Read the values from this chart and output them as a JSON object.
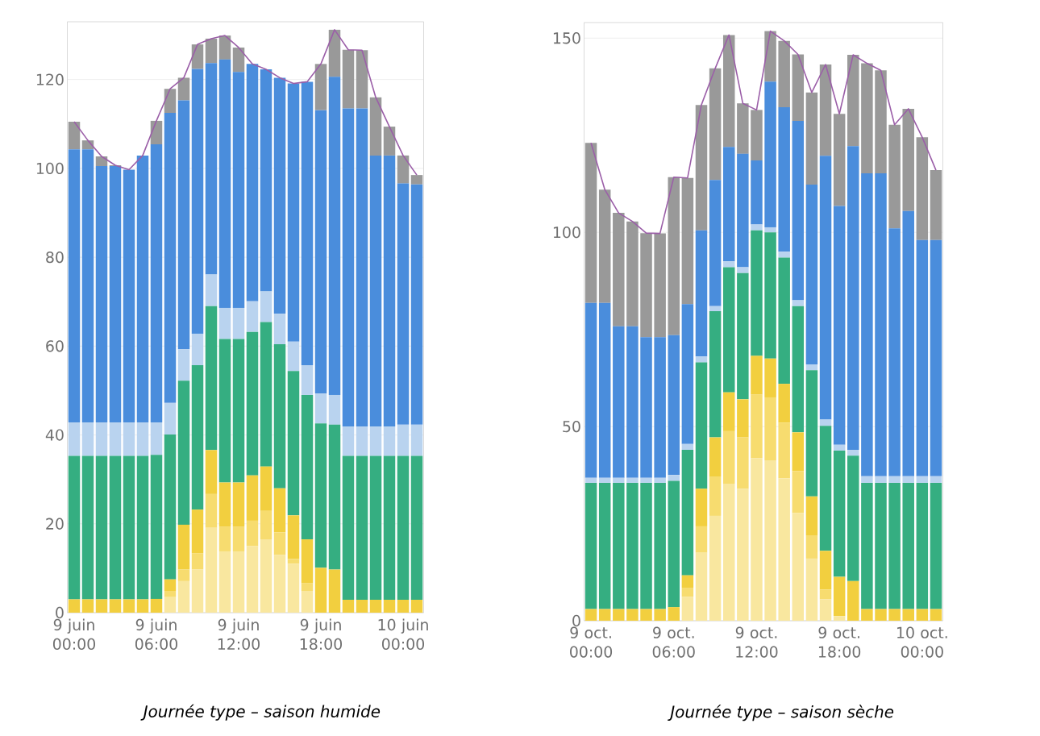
{
  "chart_data": [
    {
      "type": "bar",
      "title": "*Journée type – saison humide*",
      "stacked": true,
      "grid": "y",
      "ylim": [
        0,
        133
      ],
      "yticks": [
        0,
        20,
        40,
        60,
        80,
        100,
        120
      ],
      "categories": [
        "9 juin 00:00",
        null,
        null,
        null,
        null,
        null,
        "9 juin 06:00",
        null,
        null,
        null,
        null,
        null,
        "9 juin 12:00",
        null,
        null,
        null,
        null,
        null,
        "9 juin 18:00",
        null,
        null,
        null,
        null,
        null,
        "10 juin 00:00",
        null
      ],
      "series": [
        {
          "color": "#f9e79f",
          "values": [
            0,
            0,
            0,
            0,
            0,
            0,
            0,
            3.5,
            7.1,
            9.7,
            19.1,
            13.8,
            13.8,
            15.0,
            16.5,
            13.0,
            11.0,
            4.9,
            0,
            0,
            0,
            0,
            0,
            0,
            0,
            0
          ]
        },
        {
          "color": "#f7dc6f",
          "values": [
            0,
            0,
            0,
            0,
            0,
            0,
            0,
            1.4,
            2.6,
            3.7,
            7.6,
            5.6,
            5.6,
            5.7,
            6.4,
            5.1,
            1.1,
            1.7,
            0,
            0,
            0,
            0,
            0,
            0,
            0,
            0
          ]
        },
        {
          "color": "#f2cf3f",
          "values": [
            3,
            3,
            3,
            3,
            3,
            3,
            3.1,
            2.6,
            10.1,
            9.8,
            9.9,
            9.9,
            9.9,
            10.2,
            10.0,
            9.9,
            9.8,
            9.9,
            10.1,
            9.7,
            2.9,
            2.9,
            2.9,
            2.9,
            2.9,
            2.9
          ]
        },
        {
          "color": "#35ae81",
          "values": [
            32.3,
            32.3,
            32.3,
            32.3,
            32.3,
            32.3,
            32.4,
            32.6,
            32.4,
            32.5,
            32.4,
            32.3,
            32.3,
            32.3,
            32.5,
            32.4,
            32.5,
            32.5,
            32.5,
            32.6,
            32.4,
            32.4,
            32.4,
            32.4,
            32.4,
            32.4
          ]
        },
        {
          "color": "#b9d3ef",
          "values": [
            7.5,
            7.5,
            7.5,
            7.5,
            7.5,
            7.5,
            7.3,
            7.1,
            7.1,
            7.1,
            7.1,
            7.0,
            7.0,
            6.9,
            6.9,
            6.9,
            6.6,
            6.7,
            6.7,
            6.7,
            6.6,
            6.6,
            6.6,
            6.6,
            7.0,
            7.0
          ]
        },
        {
          "color": "#4a8ddc",
          "values": [
            61.5,
            61.5,
            57.7,
            57.7,
            56.9,
            60.1,
            62.6,
            65.3,
            56.0,
            59.6,
            47.6,
            55.9,
            53.1,
            53.4,
            50.0,
            53.1,
            58.1,
            63.8,
            63.8,
            71.6,
            71.6,
            71.6,
            61.0,
            61.0,
            54.3,
            54.1
          ]
        },
        {
          "color": "#999999",
          "values": [
            6.2,
            2.0,
            2.2,
            0.2,
            0,
            0,
            5.3,
            5.4,
            5.1,
            5.5,
            5.5,
            5.4,
            5.5,
            0,
            0,
            0,
            0,
            0,
            10.4,
            10.6,
            13.2,
            13.1,
            13.1,
            6.5,
            6.3,
            2.1
          ]
        },
        {
          "type": "line",
          "color": "#9b5fa8",
          "values": [
            110.5,
            106.3,
            102.7,
            100.7,
            99.7,
            102.9,
            110.7,
            117.9,
            120.4,
            127.9,
            129.2,
            129.9,
            127.2,
            123.5,
            122.3,
            120.4,
            119.1,
            119.5,
            123.5,
            131.2,
            126.7,
            126.6,
            116.0,
            109.4,
            102.9,
            98.5
          ]
        }
      ]
    },
    {
      "type": "bar",
      "title": "*Journée type – saison sèche*",
      "stacked": true,
      "grid": "y",
      "ylim": [
        0,
        154
      ],
      "yticks": [
        0,
        50,
        100,
        150
      ],
      "categories": [
        "9 oct. 00:00",
        null,
        null,
        null,
        null,
        null,
        "9 oct. 06:00",
        null,
        null,
        null,
        null,
        null,
        "9 oct. 12:00",
        null,
        null,
        null,
        null,
        null,
        "9 oct. 18:00",
        null,
        null,
        null,
        null,
        null,
        "10 oct. 00:00",
        null
      ],
      "series": [
        {
          "color": "#f9e79f",
          "values": [
            0,
            0,
            0,
            0,
            0,
            0,
            0,
            6.2,
            17.5,
            27.0,
            35.3,
            34.0,
            41.8,
            41.3,
            36.7,
            27.7,
            16.0,
            5.5,
            1.2,
            0,
            0,
            0,
            0,
            0,
            0,
            0
          ]
        },
        {
          "color": "#f7dc6f",
          "values": [
            0,
            0,
            0,
            0,
            0,
            0,
            0,
            2.3,
            6.8,
            10.0,
            13.5,
            13.2,
            16.4,
            16.2,
            14.3,
            10.8,
            6.0,
            2.5,
            0,
            0,
            0,
            0,
            0,
            0,
            0,
            0
          ]
        },
        {
          "color": "#f2cf3f",
          "values": [
            3.0,
            3.0,
            3.0,
            3.0,
            3.0,
            3.0,
            3.5,
            3.2,
            9.7,
            10.2,
            10.0,
            9.8,
            10.0,
            10.0,
            10.0,
            10.0,
            10.0,
            10.0,
            10.1,
            10.2,
            3.0,
            3.0,
            3.0,
            3.0,
            3.0,
            3.0
          ]
        },
        {
          "color": "#35ae81",
          "values": [
            32.5,
            32.5,
            32.5,
            32.5,
            32.5,
            32.5,
            32.5,
            32.3,
            32.5,
            32.5,
            32.2,
            32.5,
            32.3,
            32.5,
            32.5,
            32.5,
            32.5,
            32.2,
            32.5,
            32.3,
            32.5,
            32.5,
            32.5,
            32.5,
            32.5,
            32.5
          ]
        },
        {
          "color": "#b9d3ef",
          "values": [
            1.3,
            1.3,
            1.3,
            1.3,
            1.3,
            1.3,
            1.5,
            1.5,
            1.5,
            1.3,
            1.5,
            1.5,
            1.5,
            1.3,
            1.5,
            1.5,
            1.5,
            1.6,
            1.5,
            1.5,
            1.7,
            1.7,
            1.7,
            1.7,
            1.7,
            1.7
          ]
        },
        {
          "color": "#4a8ddc",
          "values": [
            45.0,
            45.0,
            39.0,
            39.0,
            36.2,
            36.2,
            36.0,
            36.0,
            32.5,
            32.5,
            29.5,
            29.2,
            16.5,
            37.5,
            37.2,
            46.2,
            46.3,
            67.9,
            61.5,
            78.2,
            78.0,
            78.0,
            63.8,
            68.3,
            60.8,
            60.8
          ]
        },
        {
          "color": "#999999",
          "values": [
            41.2,
            29.2,
            29.2,
            27.0,
            26.8,
            26.7,
            40.7,
            32.5,
            32.3,
            28.7,
            28.8,
            13.0,
            13.0,
            13.0,
            17.1,
            17.1,
            23.7,
            23.5,
            23.7,
            23.5,
            28.3,
            26.5,
            26.7,
            26.3,
            26.5,
            18.0
          ]
        },
        {
          "type": "line",
          "color": "#9b5fa8",
          "values": [
            123.0,
            111.0,
            105.0,
            102.8,
            99.8,
            99.7,
            114.2,
            114.0,
            132.8,
            142.2,
            150.8,
            133.2,
            131.5,
            151.8,
            149.3,
            145.8,
            136.0,
            143.2,
            130.5,
            145.7,
            143.5,
            141.7,
            127.7,
            131.8,
            124.5,
            116.0
          ]
        }
      ]
    }
  ]
}
